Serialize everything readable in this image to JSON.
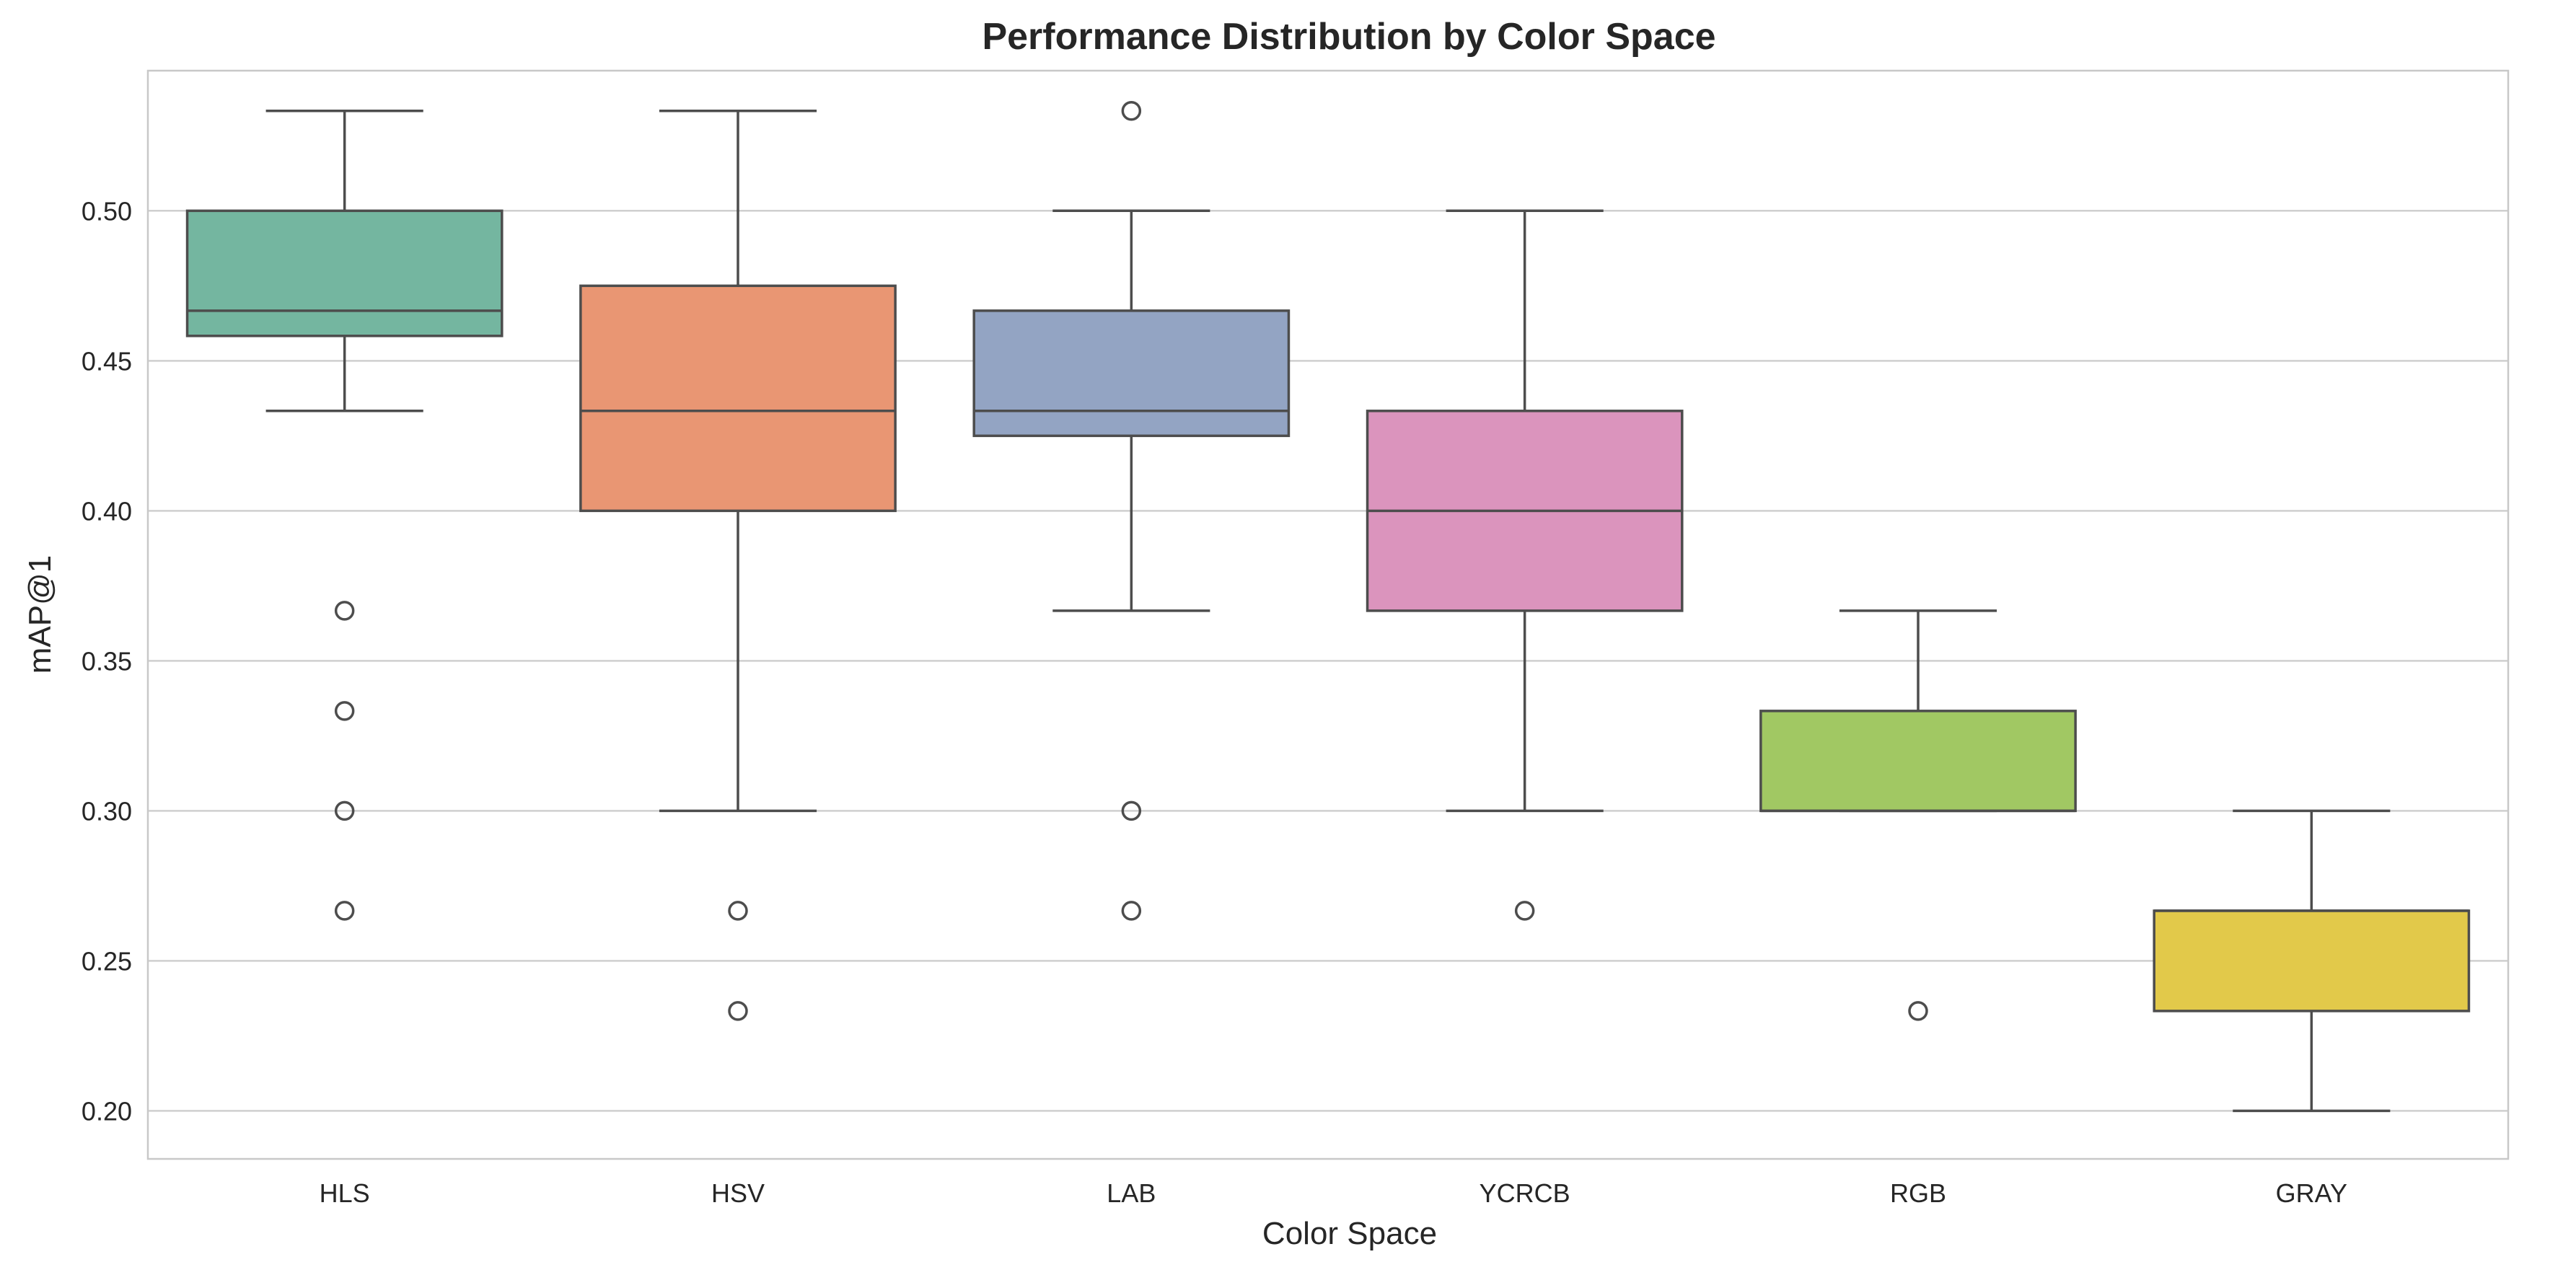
{
  "chart_data": {
    "type": "box",
    "title": "Performance Distribution by Color Space",
    "xlabel": "Color Space",
    "ylabel": "mAP@1",
    "ylim": [
      0.184,
      0.5467
    ],
    "yticks": [
      0.2,
      0.25,
      0.3,
      0.35,
      0.4,
      0.45,
      0.5
    ],
    "ytick_labels": [
      "0.20",
      "0.25",
      "0.30",
      "0.35",
      "0.40",
      "0.45",
      "0.50"
    ],
    "grid": true,
    "categories": [
      "HLS",
      "HSV",
      "LAB",
      "YCRCB",
      "RGB",
      "GRAY"
    ],
    "boxes": [
      {
        "name": "HLS",
        "color": "#74b6a0",
        "whisker_low": 0.4333,
        "q1": 0.4583,
        "median": 0.4667,
        "q3": 0.5,
        "whisker_high": 0.5333,
        "outliers": [
          0.3667,
          0.3333,
          0.3,
          0.2667
        ]
      },
      {
        "name": "HSV",
        "color": "#e99673",
        "whisker_low": 0.3,
        "q1": 0.4,
        "median": 0.4333,
        "q3": 0.475,
        "whisker_high": 0.5333,
        "outliers": [
          0.2667,
          0.2333
        ]
      },
      {
        "name": "LAB",
        "color": "#93a4c3",
        "whisker_low": 0.3667,
        "q1": 0.425,
        "median": 0.4333,
        "q3": 0.4667,
        "whisker_high": 0.5,
        "outliers": [
          0.5333,
          0.3,
          0.2667
        ]
      },
      {
        "name": "YCRCB",
        "color": "#db94bd",
        "whisker_low": 0.3,
        "q1": 0.3667,
        "median": 0.4,
        "q3": 0.4333,
        "whisker_high": 0.5,
        "outliers": [
          0.2667
        ]
      },
      {
        "name": "RGB",
        "color": "#a1c863",
        "whisker_low": 0.3,
        "q1": 0.3,
        "median": 0.3,
        "q3": 0.3333,
        "whisker_high": 0.3667,
        "outliers": [
          0.2333
        ]
      },
      {
        "name": "GRAY",
        "color": "#e2c94a",
        "whisker_low": 0.2,
        "q1": 0.2333,
        "median": 0.2667,
        "q3": 0.2667,
        "whisker_high": 0.3,
        "outliers": []
      }
    ]
  }
}
